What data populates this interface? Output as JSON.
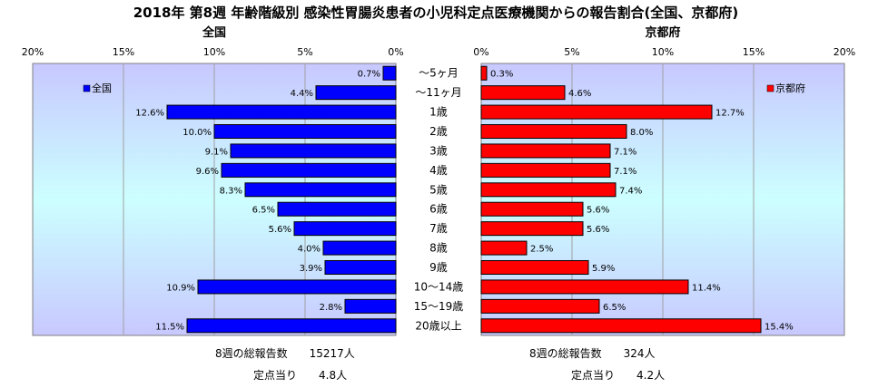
{
  "title": "2018年 第8週 年齢階級別 感染性胃腸炎患者の小児科定点医療機関からの報告割合(全国、京都府)",
  "categories": [
    "～5ヶ月",
    "～11ヶ月",
    "1歳",
    "2歳",
    "3歳",
    "4歳",
    "5歳",
    "6歳",
    "7歳",
    "8歳",
    "9歳",
    "10～14歳",
    "15～19歳",
    "20歳以上"
  ],
  "left_ticks": [
    "20%",
    "15%",
    "10%",
    "5%",
    "0%"
  ],
  "right_ticks": [
    "0%",
    "5%",
    "10%",
    "15%",
    "20%"
  ],
  "colors": {
    "national": "#0000ff",
    "kyoto": "#ff0000",
    "national_bg_edge": "#c8c8ff",
    "kyoto_bg_edge": "#c8c8ff",
    "bg_center": "#ccffff"
  },
  "chart_data": [
    {
      "type": "bar",
      "title": "全国",
      "categories": [
        "～5ヶ月",
        "～11ヶ月",
        "1歳",
        "2歳",
        "3歳",
        "4歳",
        "5歳",
        "6歳",
        "7歳",
        "8歳",
        "9歳",
        "10～14歳",
        "15～19歳",
        "20歳以上"
      ],
      "series": [
        {
          "name": "全国",
          "values": [
            0.7,
            4.4,
            12.6,
            10.0,
            9.1,
            9.6,
            8.3,
            6.5,
            5.6,
            4.0,
            3.9,
            10.9,
            2.8,
            11.5
          ]
        }
      ],
      "labels": [
        "0.7%",
        "4.4%",
        "12.6%",
        "10.0%",
        "9.1%",
        "9.6%",
        "8.3%",
        "6.5%",
        "5.6%",
        "4.0%",
        "3.9%",
        "10.9%",
        "2.8%",
        "11.5%"
      ],
      "xlim": [
        20,
        0
      ],
      "orientation": "horizontal",
      "legend": "top-left",
      "grid": true
    },
    {
      "type": "bar",
      "title": "京都府",
      "categories": [
        "～5ヶ月",
        "～11ヶ月",
        "1歳",
        "2歳",
        "3歳",
        "4歳",
        "5歳",
        "6歳",
        "7歳",
        "8歳",
        "9歳",
        "10～14歳",
        "15～19歳",
        "20歳以上"
      ],
      "series": [
        {
          "name": "京都府",
          "values": [
            0.3,
            4.6,
            12.7,
            8.0,
            7.1,
            7.1,
            7.4,
            5.6,
            5.6,
            2.5,
            5.9,
            11.4,
            6.5,
            15.4
          ]
        }
      ],
      "labels": [
        "0.3%",
        "4.6%",
        "12.7%",
        "8.0%",
        "7.1%",
        "7.1%",
        "7.4%",
        "5.6%",
        "5.6%",
        "2.5%",
        "5.9%",
        "11.4%",
        "6.5%",
        "15.4%"
      ],
      "xlim": [
        0,
        20
      ],
      "orientation": "horizontal",
      "legend": "top-right",
      "grid": true
    }
  ],
  "footer": {
    "national_total": "8週の総報告数　　15217人",
    "national_per": "定点当り　　4.8人",
    "kyoto_total": "8週の総報告数　　324人",
    "kyoto_per": "定点当り　　4.2人"
  }
}
